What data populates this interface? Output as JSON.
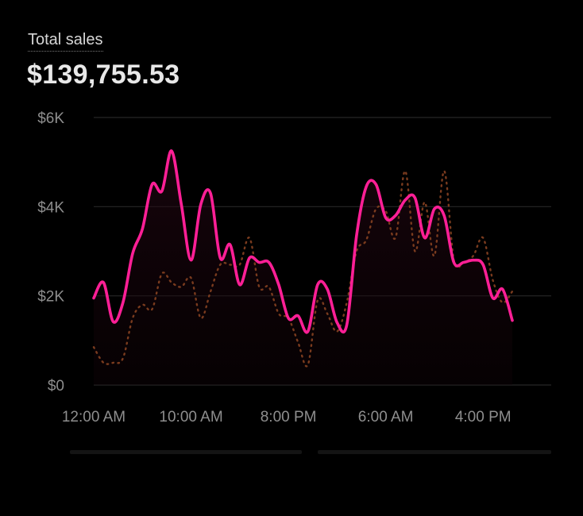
{
  "metric": {
    "label": "Total sales",
    "value": "$139,755.53"
  },
  "colors": {
    "primary_series": "#ff1f96",
    "comparison_series": "#7a3b1e",
    "gridline": "#262626",
    "tick_text": "#8e8e8e"
  },
  "chart_data": {
    "type": "line",
    "y_ticks": [
      "$0",
      "$2K",
      "$4K",
      "$6K"
    ],
    "y_tick_values": [
      0,
      2000,
      4000,
      6000
    ],
    "ylim": [
      0,
      6000
    ],
    "x_ticks": [
      "12:00 AM",
      "10:00 AM",
      "8:00 PM",
      "6:00 AM",
      "4:00 PM"
    ],
    "x_tick_index": [
      0,
      10,
      20,
      30,
      40
    ],
    "xlim": [
      0,
      47
    ],
    "grid": true,
    "series": [
      {
        "style": "solid",
        "values": [
          1950,
          2300,
          1420,
          1850,
          2950,
          3500,
          4500,
          4350,
          5250,
          4050,
          2800,
          4050,
          4300,
          2850,
          3150,
          2250,
          2850,
          2750,
          2750,
          2250,
          1500,
          1550,
          1200,
          2250,
          2150,
          1400,
          1350,
          3350,
          4450,
          4500,
          3750,
          3800,
          4150,
          4200,
          3300,
          3950,
          3800,
          2750,
          2750,
          2800,
          2700,
          1950,
          2150,
          1450
        ]
      },
      {
        "style": "dotted",
        "values": [
          850,
          500,
          500,
          600,
          1500,
          1800,
          1700,
          2500,
          2300,
          2200,
          2400,
          1500,
          2100,
          2700,
          2700,
          2700,
          3300,
          2200,
          2200,
          1600,
          1500,
          950,
          450,
          1900,
          1600,
          1200,
          1850,
          3000,
          3250,
          3950,
          3900,
          3300,
          4800,
          3000,
          4100,
          2900,
          4800,
          2800,
          2750,
          2900,
          3300,
          2350,
          1850,
          2100
        ]
      }
    ]
  }
}
